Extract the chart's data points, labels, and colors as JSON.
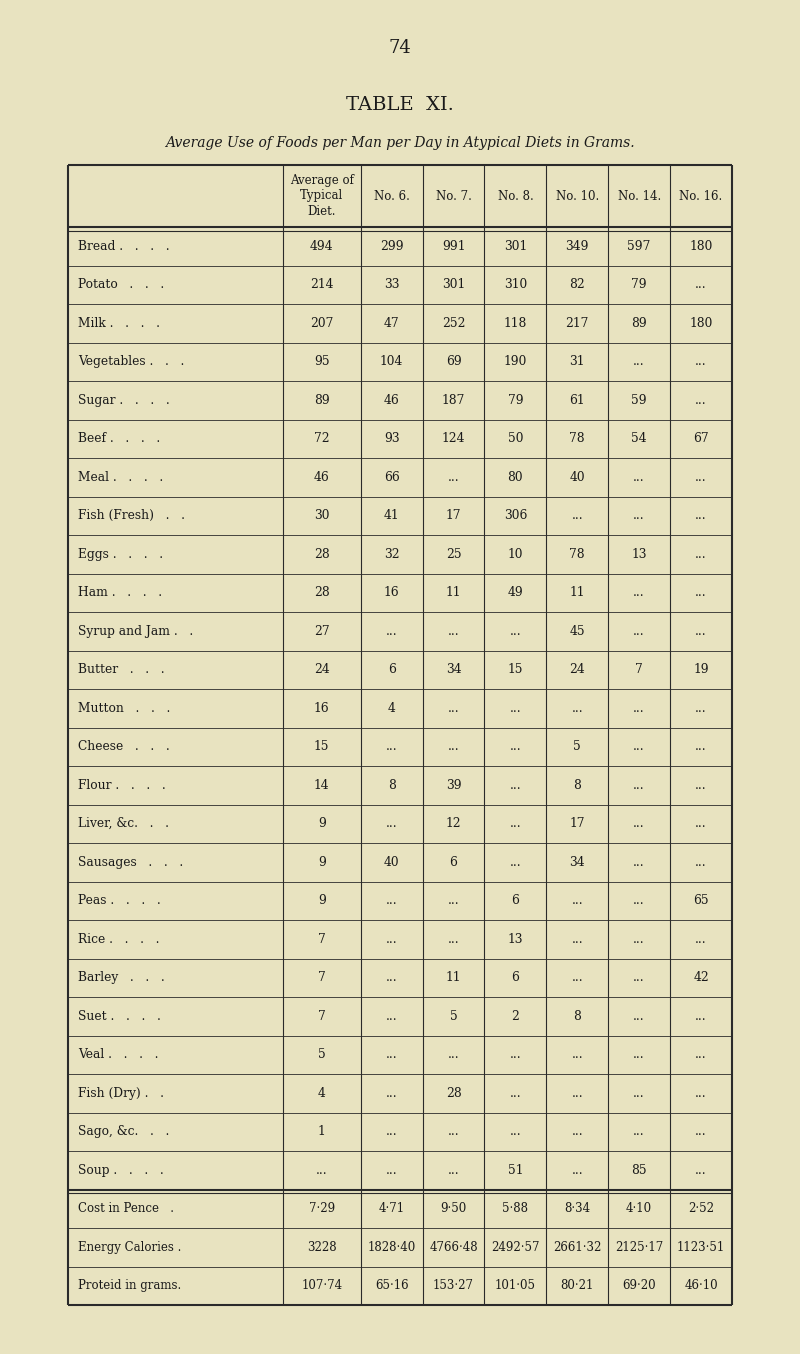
{
  "page_number": "74",
  "title": "TABLE  XI.",
  "subtitle": "Average Use of Foods per Man per Day in Atypical Diets in Grams.",
  "bg_color": "#e8e3c0",
  "headers": [
    "",
    "Average of\nTypical\nDiet.",
    "No. 6.",
    "No. 7.",
    "No. 8.",
    "No. 10.",
    "No. 14.",
    "No. 16."
  ],
  "rows": [
    [
      "Bread .   .   .   .",
      "494",
      "299",
      "991",
      "301",
      "349",
      "597",
      "180"
    ],
    [
      "Potato   .   .   .",
      "214",
      "33",
      "301",
      "310",
      "82",
      "79",
      "..."
    ],
    [
      "Milk .   .   .   .",
      "207",
      "47",
      "252",
      "118",
      "217",
      "89",
      "180"
    ],
    [
      "Vegetables .   .   .",
      "95",
      "104",
      "69",
      "190",
      "31",
      "...",
      "..."
    ],
    [
      "Sugar .   .   .   .",
      "89",
      "46",
      "187",
      "79",
      "61",
      "59",
      "..."
    ],
    [
      "Beef .   .   .   .",
      "72",
      "93",
      "124",
      "50",
      "78",
      "54",
      "67"
    ],
    [
      "Meal .   .   .   .",
      "46",
      "66",
      "...",
      "80",
      "40",
      "...",
      "..."
    ],
    [
      "Fish (Fresh)   .   .",
      "30",
      "41",
      "17",
      "306",
      "...",
      "...",
      "..."
    ],
    [
      "Eggs .   .   .   .",
      "28",
      "32",
      "25",
      "10",
      "78",
      "13",
      "..."
    ],
    [
      "Ham .   .   .   .",
      "28",
      "16",
      "11",
      "49",
      "11",
      "...",
      "..."
    ],
    [
      "Syrup and Jam .   .",
      "27",
      "...",
      "...",
      "...",
      "45",
      "...",
      "..."
    ],
    [
      "Butter   .   .   .",
      "24",
      "6",
      "34",
      "15",
      "24",
      "7",
      "19"
    ],
    [
      "Mutton   .   .   .",
      "16",
      "4",
      "...",
      "...",
      "...",
      "...",
      "..."
    ],
    [
      "Cheese   .   .   .",
      "15",
      "...",
      "...",
      "...",
      "5",
      "...",
      "..."
    ],
    [
      "Flour .   .   .   .",
      "14",
      "8",
      "39",
      "...",
      "8",
      "...",
      "..."
    ],
    [
      "Liver, &c.   .   .",
      "9",
      "...",
      "12",
      "...",
      "17",
      "...",
      "..."
    ],
    [
      "Sausages   .   .   .",
      "9",
      "40",
      "6",
      "...",
      "34",
      "...",
      "..."
    ],
    [
      "Peas .   .   .   .",
      "9",
      "...",
      "...",
      "6",
      "...",
      "...",
      "65"
    ],
    [
      "Rice .   .   .   .",
      "7",
      "...",
      "...",
      "13",
      "...",
      "...",
      "..."
    ],
    [
      "Barley   .   .   .",
      "7",
      "...",
      "11",
      "6",
      "...",
      "...",
      "42"
    ],
    [
      "Suet .   .   .   .",
      "7",
      "...",
      "5",
      "2",
      "8",
      "...",
      "..."
    ],
    [
      "Veal .   .   .   .",
      "5",
      "...",
      "...",
      "...",
      "...",
      "...",
      "..."
    ],
    [
      "Fish (Dry) .   .",
      "4",
      "...",
      "28",
      "...",
      "...",
      "...",
      "..."
    ],
    [
      "Sago, &c.   .   .",
      "1",
      "...",
      "...",
      "...",
      "...",
      "...",
      "..."
    ],
    [
      "Soup .   .   .   .",
      "...",
      "...",
      "...",
      "51",
      "...",
      "85",
      "..."
    ],
    [
      "Cost in Pence   .",
      "7·29",
      "4·71",
      "9·50",
      "5·88",
      "8·34",
      "4·10",
      "2·52"
    ],
    [
      "Energy Calories .",
      "3228",
      "1828·40",
      "4766·48",
      "2492·57",
      "2661·32",
      "2125·17",
      "1123·51"
    ],
    [
      "Proteid in grams.",
      "107·74",
      "65·16",
      "153·27",
      "101·05",
      "80·21",
      "69·20",
      "46·10"
    ]
  ],
  "separator_before_row": 25,
  "text_color": "#1a1a1a",
  "line_color": "#2a2a2a"
}
